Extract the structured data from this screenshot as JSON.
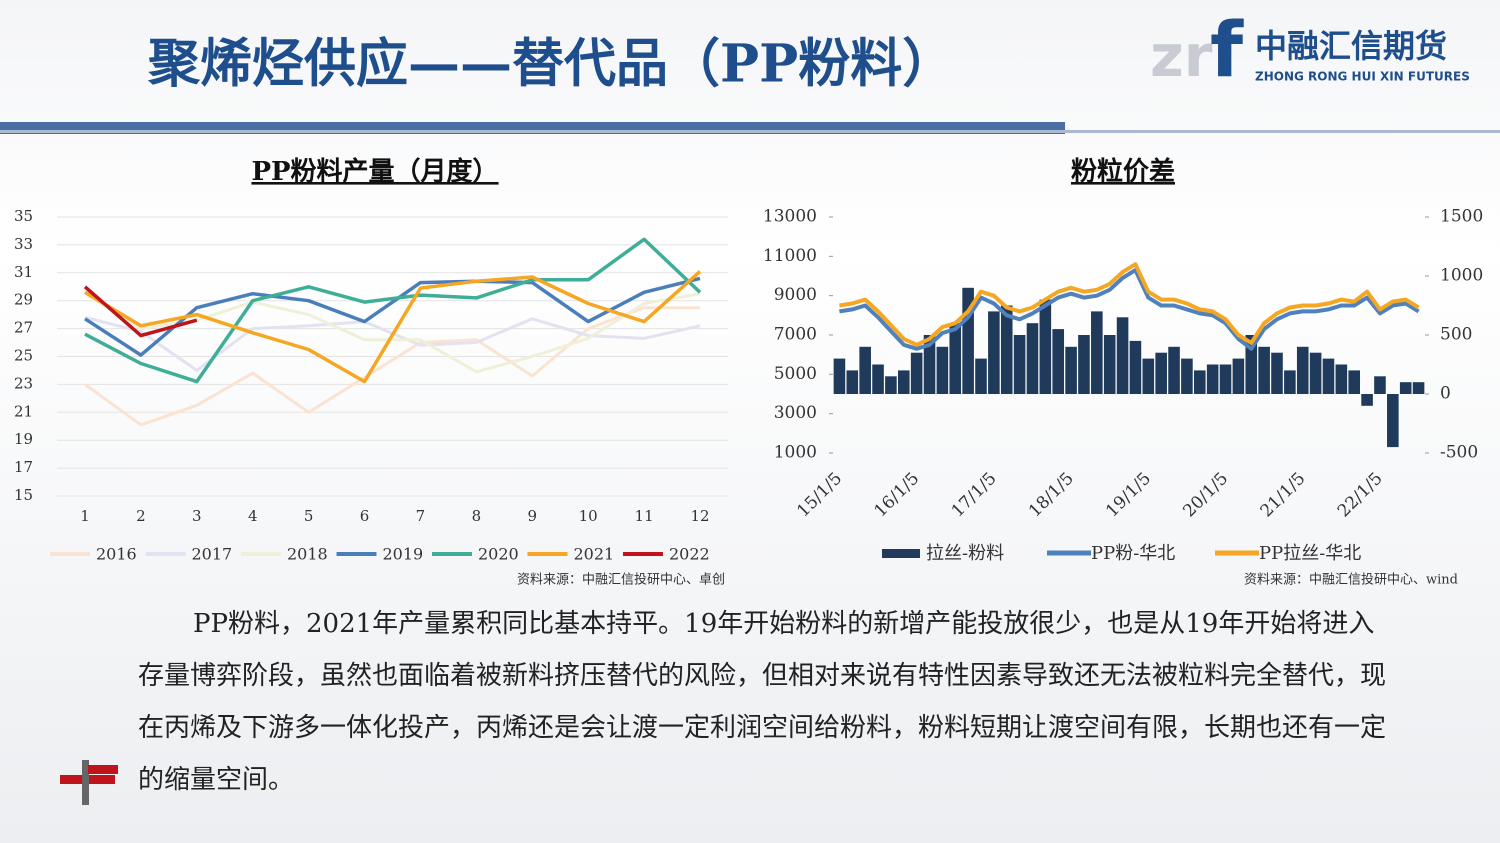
{
  "slide_title": "聚烯烃供应——替代品（PP粉料）",
  "logo": {
    "name": "中融汇信期货",
    "english": "ZHONG RONG HUI XIN FUTURES"
  },
  "chart_data": [
    {
      "type": "line",
      "title": "PP粉料产量（月度）",
      "source": "资料来源：中融汇信投研中心、卓创",
      "categories": [
        "1",
        "2",
        "3",
        "4",
        "5",
        "6",
        "7",
        "8",
        "9",
        "10",
        "11",
        "12"
      ],
      "ylim": [
        15,
        35
      ],
      "yticks": [
        15,
        17,
        19,
        21,
        23,
        25,
        27,
        29,
        31,
        33,
        35
      ],
      "grid": true,
      "legend": "bottom",
      "series": [
        {
          "name": "2016",
          "color": "#fbe3d2",
          "values": [
            23,
            20.1,
            21.5,
            23.8,
            21,
            23.5,
            26,
            26.2,
            23.6,
            27,
            28.5,
            28.5
          ]
        },
        {
          "name": "2017",
          "color": "#e3e2f1",
          "values": [
            27.8,
            26.8,
            24,
            27,
            27.2,
            27.5,
            25.8,
            26,
            27.7,
            26.5,
            26.3,
            27.2
          ]
        },
        {
          "name": "2018",
          "color": "#eef0d8",
          "values": [
            29.5,
            27,
            27.6,
            28.9,
            28,
            26.2,
            26.2,
            23.9,
            25,
            26.3,
            28.8,
            29.5
          ]
        },
        {
          "name": "2019",
          "color": "#4a7ebb",
          "values": [
            27.7,
            25.1,
            28.5,
            29.5,
            29,
            27.5,
            30.3,
            30.4,
            30.3,
            27.5,
            29.6,
            30.6
          ]
        },
        {
          "name": "2020",
          "color": "#3fae96",
          "values": [
            26.6,
            24.5,
            23.2,
            29,
            30,
            28.9,
            29.4,
            29.2,
            30.5,
            30.5,
            33.4,
            29.6
          ]
        },
        {
          "name": "2021",
          "color": "#f5a623",
          "values": [
            29.6,
            27.2,
            28,
            26.7,
            25.5,
            23.2,
            29.9,
            30.4,
            30.7,
            28.8,
            27.5,
            31.1
          ]
        },
        {
          "name": "2022",
          "color": "#c0141c",
          "values": [
            30,
            26.5,
            27.6,
            null,
            null,
            null,
            null,
            null,
            null,
            null,
            null,
            null
          ]
        }
      ]
    },
    {
      "type": "combo",
      "title": "粉粒价差",
      "source": "资料来源：中融汇信投研中心、wind",
      "categories": [
        "15/1/5",
        null,
        null,
        null,
        null,
        null,
        "16/1/5",
        null,
        null,
        null,
        null,
        null,
        "17/1/5",
        null,
        null,
        null,
        null,
        null,
        "18/1/5",
        null,
        null,
        null,
        null,
        null,
        "19/1/5",
        null,
        null,
        null,
        null,
        null,
        "20/1/5",
        null,
        null,
        null,
        null,
        null,
        "21/1/5",
        null,
        null,
        null,
        null,
        null,
        "22/1/5",
        null,
        null,
        null
      ],
      "ylim": [
        1000,
        13000
      ],
      "yticks": [
        1000,
        3000,
        5000,
        7000,
        9000,
        11000,
        13000
      ],
      "y2lim": [
        -500,
        1500
      ],
      "y2ticks": [
        -500,
        0,
        500,
        1000,
        1500
      ],
      "legend": "bottom",
      "series": [
        {
          "name": "拉丝-粉料",
          "kind": "bar",
          "axis": "y2",
          "color": "#1f3a5a",
          "values": [
            300,
            200,
            400,
            250,
            150,
            200,
            350,
            500,
            400,
            600,
            900,
            300,
            700,
            750,
            500,
            600,
            800,
            550,
            400,
            500,
            700,
            500,
            650,
            450,
            300,
            350,
            400,
            300,
            200,
            250,
            250,
            300,
            500,
            400,
            350,
            200,
            400,
            350,
            300,
            250,
            200,
            -100,
            150,
            -450,
            100,
            100
          ]
        },
        {
          "name": "PP粉-华北",
          "kind": "line",
          "color": "#4f81bd",
          "values": [
            8200,
            8300,
            8500,
            7900,
            7200,
            6500,
            6300,
            6500,
            7100,
            7300,
            7900,
            8900,
            8600,
            8000,
            7800,
            8100,
            8500,
            8900,
            9100,
            8900,
            9000,
            9300,
            9900,
            10300,
            8900,
            8500,
            8500,
            8300,
            8100,
            8000,
            7600,
            6800,
            6300,
            7300,
            7800,
            8100,
            8200,
            8200,
            8300,
            8500,
            8500,
            8900,
            8100,
            8500,
            8600,
            8200
          ]
        },
        {
          "name": "PP拉丝-华北",
          "kind": "line",
          "color": "#f5a623",
          "values": [
            8500,
            8600,
            8800,
            8200,
            7500,
            6800,
            6500,
            6800,
            7400,
            7600,
            8200,
            9200,
            9000,
            8400,
            8200,
            8400,
            8800,
            9200,
            9400,
            9200,
            9300,
            9600,
            10200,
            10600,
            9200,
            8800,
            8800,
            8600,
            8300,
            8200,
            7800,
            7000,
            6600,
            7600,
            8100,
            8400,
            8500,
            8500,
            8600,
            8800,
            8700,
            9200,
            8300,
            8700,
            8800,
            8400
          ]
        }
      ]
    }
  ],
  "paragraph": "PP粉料，2021年产量累积同比基本持平。19年开始粉料的新增产能投放很少，也是从19年开始将进入存量博弈阶段，虽然也面临着被新料挤压替代的风险，但相对来说有特性因素导致还无法被粒料完全替代，现在丙烯及下游多一体化投产，丙烯还是会让渡一定利润空间给粉料，粉料短期让渡空间有限，长期也还有一定的缩量空间。"
}
